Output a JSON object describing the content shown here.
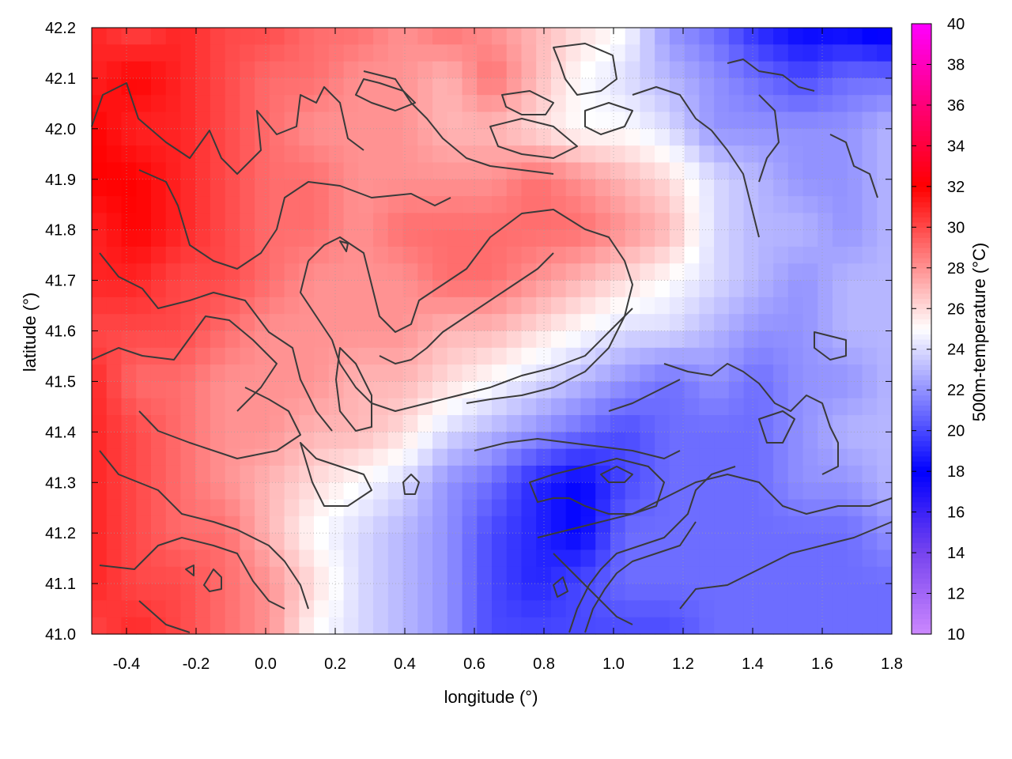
{
  "chart_data": {
    "type": "heatmap",
    "title": "",
    "xlabel": "longitude (°)",
    "ylabel": "latitude (°)",
    "colorbar_label": "500m-temperature (°C)",
    "xlim": [
      -0.5,
      1.8
    ],
    "ylim": [
      41.0,
      42.2
    ],
    "zlim": [
      10,
      40
    ],
    "x_ticks": [
      "-0.4",
      "-0.2",
      "0.0",
      "0.2",
      "0.4",
      "0.6",
      "0.8",
      "1.0",
      "1.2",
      "1.4",
      "1.6",
      "1.8"
    ],
    "x_tick_values": [
      -0.4,
      -0.2,
      0.0,
      0.2,
      0.4,
      0.6,
      0.8,
      1.0,
      1.2,
      1.4,
      1.6,
      1.8
    ],
    "y_ticks": [
      "41.0",
      "41.1",
      "41.2",
      "41.3",
      "41.4",
      "41.5",
      "41.6",
      "41.7",
      "41.8",
      "41.9",
      "42.0",
      "42.1",
      "42.2"
    ],
    "y_tick_values": [
      41.0,
      41.1,
      41.2,
      41.3,
      41.4,
      41.5,
      41.6,
      41.7,
      41.8,
      41.9,
      42.0,
      42.1,
      42.2
    ],
    "colorbar_ticks": [
      "10",
      "12",
      "14",
      "16",
      "18",
      "20",
      "22",
      "24",
      "26",
      "28",
      "30",
      "32",
      "34",
      "36",
      "38",
      "40"
    ],
    "colorbar_tick_values": [
      10,
      12,
      14,
      16,
      18,
      20,
      22,
      24,
      26,
      28,
      30,
      32,
      34,
      36,
      38,
      40
    ],
    "colormap_stops": [
      {
        "value": 10,
        "color": "#cc88ff"
      },
      {
        "value": 14,
        "color": "#7744ee"
      },
      {
        "value": 18,
        "color": "#0000ff"
      },
      {
        "value": 25,
        "color": "#ffffff"
      },
      {
        "value": 32,
        "color": "#ff0000"
      },
      {
        "value": 36,
        "color": "#ff0077"
      },
      {
        "value": 40,
        "color": "#ff00ff"
      }
    ],
    "grid": true,
    "z_rows": [
      [
        31,
        30,
        31,
        30,
        30,
        29,
        29,
        28,
        29,
        28,
        27,
        26,
        25,
        22,
        21,
        19,
        18,
        18,
        17
      ],
      [
        31,
        32,
        31,
        30,
        29,
        29,
        28,
        28,
        27,
        29,
        27,
        25,
        24,
        23,
        22,
        21,
        20,
        21,
        21
      ],
      [
        32,
        31,
        31,
        30,
        29,
        28,
        28,
        28,
        27,
        27,
        26,
        25,
        25,
        24,
        22,
        22,
        22,
        22,
        23
      ],
      [
        32,
        32,
        31,
        30,
        29,
        29,
        28,
        28,
        28,
        28,
        29,
        28,
        27,
        26,
        24,
        23,
        22,
        22,
        23
      ],
      [
        31,
        32,
        31,
        30,
        29,
        29,
        28,
        29,
        29,
        29,
        29,
        29,
        28,
        27,
        24,
        23,
        23,
        22,
        23
      ],
      [
        31,
        31,
        30,
        30,
        29,
        28,
        28,
        28,
        29,
        29,
        28,
        27,
        26,
        25,
        24,
        23,
        22,
        23,
        23
      ],
      [
        30,
        30,
        30,
        29,
        28,
        28,
        28,
        28,
        27,
        27,
        26,
        25,
        24,
        24,
        23,
        22,
        22,
        23,
        23
      ],
      [
        31,
        29,
        29,
        28,
        28,
        28,
        27,
        27,
        26,
        25,
        24,
        23,
        22,
        21,
        22,
        21,
        22,
        22,
        23
      ],
      [
        31,
        30,
        29,
        28,
        28,
        27,
        27,
        26,
        24,
        23,
        22,
        21,
        20,
        21,
        21,
        21,
        22,
        23,
        23
      ],
      [
        31,
        30,
        29,
        28,
        27,
        26,
        25,
        24,
        22,
        21,
        19,
        18,
        20,
        21,
        21,
        21,
        22,
        22,
        23
      ],
      [
        31,
        30,
        29,
        29,
        27,
        25,
        24,
        23,
        22,
        20,
        19,
        18,
        21,
        21,
        21,
        21,
        21,
        21,
        22
      ],
      [
        31,
        30,
        30,
        29,
        28,
        26,
        24,
        23,
        22,
        20,
        19,
        20,
        21,
        21,
        21,
        21,
        21,
        21,
        21
      ],
      [
        30,
        31,
        30,
        29,
        28,
        25,
        24,
        23,
        22,
        20,
        20,
        20,
        20,
        20,
        21,
        21,
        21,
        21,
        21
      ]
    ]
  }
}
